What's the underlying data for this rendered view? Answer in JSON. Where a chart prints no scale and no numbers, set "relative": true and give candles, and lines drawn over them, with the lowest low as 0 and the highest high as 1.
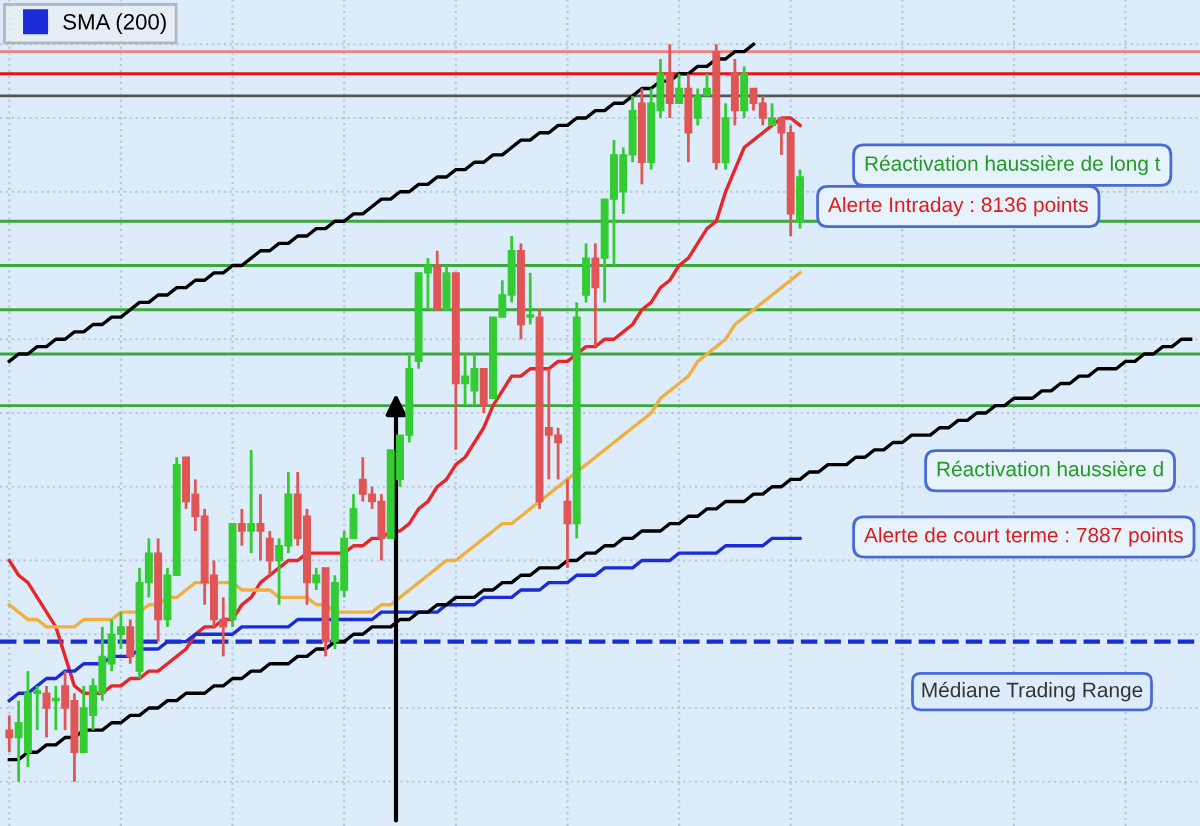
{
  "chart_data": {
    "type": "candlestick",
    "relative": true,
    "grid": true,
    "legend": "top left",
    "categories": [
      null,
      null,
      null,
      null,
      null,
      null,
      null,
      null,
      null,
      null,
      null,
      null,
      null,
      null,
      null,
      null,
      null,
      null,
      null,
      null,
      null,
      null,
      null,
      null,
      null,
      null,
      null,
      null,
      null,
      null,
      null,
      null,
      null,
      null,
      null,
      null,
      null,
      null,
      null,
      null,
      null,
      null,
      null,
      null,
      null,
      null,
      null,
      null,
      null,
      null,
      null,
      null,
      null,
      null,
      null,
      null,
      null,
      null,
      null,
      null,
      null,
      null,
      null,
      null,
      null,
      null,
      null,
      null,
      null,
      null,
      null,
      null,
      null,
      null,
      null,
      null,
      null,
      null,
      null,
      null,
      null,
      null,
      null,
      null,
      null,
      null,
      null,
      null,
      null,
      null,
      null,
      null,
      null,
      null,
      null,
      null,
      null,
      null,
      null,
      null,
      null,
      null,
      null,
      null,
      null,
      null,
      null,
      null,
      null,
      null,
      null,
      null,
      null,
      null,
      null,
      null,
      null,
      null,
      null,
      null,
      null,
      null,
      null,
      null,
      null,
      null,
      null,
      null
    ],
    "ohlc": [
      [
        0.07,
        0.09,
        0.04,
        0.06
      ],
      [
        0.06,
        0.11,
        0.0,
        0.08
      ],
      [
        0.04,
        0.15,
        0.02,
        0.12
      ],
      [
        0.12,
        0.13,
        0.07,
        0.12
      ],
      [
        0.12,
        0.13,
        0.06,
        0.1
      ],
      [
        0.11,
        0.13,
        0.07,
        0.11
      ],
      [
        0.13,
        0.15,
        0.07,
        0.1
      ],
      [
        0.11,
        0.12,
        0.0,
        0.04
      ],
      [
        0.04,
        0.13,
        0.04,
        0.1
      ],
      [
        0.09,
        0.14,
        0.07,
        0.13
      ],
      [
        0.12,
        0.21,
        0.11,
        0.17
      ],
      [
        0.16,
        0.22,
        0.15,
        0.2
      ],
      [
        0.2,
        0.23,
        0.18,
        0.21
      ],
      [
        0.21,
        0.22,
        0.16,
        0.17
      ],
      [
        0.15,
        0.29,
        0.14,
        0.27
      ],
      [
        0.27,
        0.33,
        0.25,
        0.31
      ],
      [
        0.31,
        0.33,
        0.19,
        0.22
      ],
      [
        0.22,
        0.29,
        0.21,
        0.28
      ],
      [
        0.28,
        0.44,
        0.28,
        0.43
      ],
      [
        0.44,
        0.44,
        0.37,
        0.38
      ],
      [
        0.39,
        0.41,
        0.34,
        0.36
      ],
      [
        0.36,
        0.37,
        0.24,
        0.27
      ],
      [
        0.28,
        0.3,
        0.21,
        0.22
      ],
      [
        0.22,
        0.25,
        0.17,
        0.21
      ],
      [
        0.22,
        0.35,
        0.21,
        0.35
      ],
      [
        0.35,
        0.37,
        0.32,
        0.34
      ],
      [
        0.34,
        0.45,
        0.31,
        0.35
      ],
      [
        0.35,
        0.39,
        0.3,
        0.34
      ],
      [
        0.33,
        0.34,
        0.28,
        0.3
      ],
      [
        0.3,
        0.33,
        0.24,
        0.32
      ],
      [
        0.32,
        0.42,
        0.31,
        0.39
      ],
      [
        0.39,
        0.42,
        0.32,
        0.33
      ],
      [
        0.36,
        0.37,
        0.24,
        0.27
      ],
      [
        0.27,
        0.29,
        0.26,
        0.28
      ],
      [
        0.29,
        0.29,
        0.17,
        0.19
      ],
      [
        0.19,
        0.28,
        0.18,
        0.27
      ],
      [
        0.26,
        0.34,
        0.25,
        0.33
      ],
      [
        0.33,
        0.39,
        0.33,
        0.37
      ],
      [
        0.41,
        0.44,
        0.38,
        0.39
      ],
      [
        0.39,
        0.4,
        0.37,
        0.38
      ],
      [
        0.38,
        0.39,
        0.3,
        0.33
      ],
      [
        0.33,
        0.45,
        0.33,
        0.45
      ],
      [
        0.41,
        0.47,
        0.4,
        0.47
      ],
      [
        0.47,
        0.58,
        0.46,
        0.56
      ],
      [
        0.57,
        0.69,
        0.56,
        0.69
      ],
      [
        0.69,
        0.71,
        0.64,
        0.7
      ],
      [
        0.7,
        0.72,
        0.64,
        0.64
      ],
      [
        0.64,
        0.7,
        0.64,
        0.69
      ],
      [
        0.69,
        0.69,
        0.45,
        0.54
      ],
      [
        0.54,
        0.58,
        0.51,
        0.55
      ],
      [
        0.53,
        0.58,
        0.51,
        0.56
      ],
      [
        0.56,
        0.56,
        0.5,
        0.51
      ],
      [
        0.52,
        0.63,
        0.52,
        0.63
      ],
      [
        0.63,
        0.68,
        0.63,
        0.66
      ],
      [
        0.66,
        0.74,
        0.65,
        0.72
      ],
      [
        0.72,
        0.73,
        0.6,
        0.62
      ],
      [
        0.63,
        0.69,
        0.62,
        0.63
      ],
      [
        0.63,
        0.64,
        0.37,
        0.38
      ],
      [
        0.48,
        0.56,
        0.41,
        0.47
      ],
      [
        0.47,
        0.48,
        0.41,
        0.46
      ],
      [
        0.38,
        0.41,
        0.29,
        0.35
      ],
      [
        0.35,
        0.65,
        0.33,
        0.63
      ],
      [
        0.66,
        0.73,
        0.65,
        0.71
      ],
      [
        0.71,
        0.73,
        0.59,
        0.67
      ],
      [
        0.71,
        0.79,
        0.65,
        0.79
      ],
      [
        0.79,
        0.87,
        0.7,
        0.85
      ],
      [
        0.8,
        0.86,
        0.77,
        0.85
      ],
      [
        0.85,
        0.93,
        0.84,
        0.91
      ],
      [
        0.92,
        0.94,
        0.81,
        0.84
      ],
      [
        0.84,
        0.94,
        0.83,
        0.92
      ],
      [
        0.91,
        0.98,
        0.9,
        0.96
      ],
      [
        0.96,
        1.0,
        0.9,
        0.92
      ],
      [
        0.92,
        0.96,
        0.92,
        0.94
      ],
      [
        0.94,
        0.96,
        0.84,
        0.88
      ],
      [
        0.9,
        0.94,
        0.89,
        0.93
      ],
      [
        0.93,
        0.96,
        0.93,
        0.94
      ],
      [
        0.99,
        1.0,
        0.83,
        0.84
      ],
      [
        0.84,
        0.92,
        0.83,
        0.9
      ],
      [
        0.96,
        0.98,
        0.89,
        0.91
      ],
      [
        0.91,
        0.97,
        0.9,
        0.96
      ],
      [
        0.94,
        0.94,
        0.91,
        0.92
      ],
      [
        0.92,
        0.93,
        0.89,
        0.9
      ],
      [
        0.89,
        0.92,
        0.89,
        0.9
      ],
      [
        0.9,
        0.9,
        0.85,
        0.88
      ],
      [
        0.88,
        0.89,
        0.74,
        0.77
      ],
      [
        0.76,
        0.83,
        0.75,
        0.82
      ],
      null,
      null,
      null,
      null,
      null,
      null,
      null,
      null,
      null,
      null,
      null,
      null,
      null,
      null,
      null,
      null,
      null,
      null,
      null,
      null,
      null,
      null,
      null,
      null,
      null,
      null,
      null,
      null,
      null,
      null,
      null,
      null,
      null,
      null,
      null,
      null,
      null,
      null,
      null,
      null,
      null,
      null
    ],
    "series": [
      {
        "type": "line",
        "color": "#e8262a",
        "values": [
          0.3,
          0.28,
          0.27,
          0.25,
          0.23,
          0.21,
          0.17,
          0.13,
          0.12,
          0.12,
          0.12,
          0.13,
          0.13,
          0.14,
          0.14,
          0.15,
          0.15,
          0.16,
          0.17,
          0.18,
          0.2,
          0.21,
          0.21,
          0.22,
          0.22,
          0.24,
          0.25,
          0.27,
          0.28,
          0.29,
          0.3,
          0.3,
          0.31,
          0.31,
          0.31,
          0.31,
          0.31,
          0.32,
          0.32,
          0.33,
          0.33,
          0.34,
          0.34,
          0.35,
          0.37,
          0.38,
          0.4,
          0.41,
          0.43,
          0.44,
          0.46,
          0.48,
          0.51,
          0.53,
          0.55,
          0.55,
          0.56,
          0.56,
          0.56,
          0.57,
          0.57,
          0.58,
          0.59,
          0.59,
          0.6,
          0.6,
          0.61,
          0.62,
          0.64,
          0.65,
          0.67,
          0.68,
          0.7,
          0.71,
          0.73,
          0.75,
          0.76,
          0.8,
          0.83,
          0.86,
          0.87,
          0.88,
          0.89,
          0.9,
          0.9,
          0.89,
          null,
          null,
          null,
          null,
          null,
          null,
          null,
          null,
          null,
          null,
          null,
          null,
          null,
          null,
          null,
          null,
          null,
          null,
          null,
          null,
          null,
          null,
          null,
          null,
          null,
          null,
          null,
          null,
          null,
          null,
          null,
          null,
          null,
          null,
          null,
          null,
          null,
          null,
          null,
          null,
          null,
          null
        ]
      },
      {
        "type": "line",
        "color": "#f0b040",
        "values": [
          0.24,
          0.23,
          0.22,
          0.22,
          0.21,
          0.21,
          0.21,
          0.21,
          0.22,
          0.22,
          0.22,
          0.22,
          0.23,
          0.23,
          0.23,
          0.24,
          0.24,
          0.25,
          0.25,
          0.26,
          0.27,
          0.27,
          0.27,
          0.27,
          0.27,
          0.26,
          0.26,
          0.26,
          0.26,
          0.25,
          0.25,
          0.25,
          0.25,
          0.24,
          0.24,
          0.23,
          0.23,
          0.23,
          0.23,
          0.23,
          0.24,
          0.24,
          0.25,
          0.26,
          0.27,
          0.28,
          0.29,
          0.3,
          0.3,
          0.31,
          0.32,
          0.33,
          0.34,
          0.35,
          0.35,
          0.36,
          0.37,
          0.38,
          0.39,
          0.4,
          0.41,
          0.42,
          0.43,
          0.44,
          0.45,
          0.46,
          0.47,
          0.48,
          0.49,
          0.5,
          0.52,
          0.53,
          0.54,
          0.55,
          0.57,
          0.58,
          0.59,
          0.6,
          0.62,
          0.63,
          0.64,
          0.65,
          0.66,
          0.67,
          0.68,
          0.69,
          null,
          null,
          null,
          null,
          null,
          null,
          null,
          null,
          null,
          null,
          null,
          null,
          null,
          null,
          null,
          null,
          null,
          null,
          null,
          null,
          null,
          null,
          null,
          null,
          null,
          null,
          null,
          null,
          null,
          null,
          null,
          null,
          null,
          null,
          null,
          null,
          null,
          null,
          null,
          null,
          null,
          null
        ]
      },
      {
        "type": "line",
        "name": "SMA (200)",
        "color": "#1a2bd8",
        "values": [
          0.11,
          0.12,
          0.12,
          0.13,
          0.14,
          0.14,
          0.15,
          0.15,
          0.16,
          0.16,
          0.16,
          0.17,
          0.17,
          0.17,
          0.18,
          0.18,
          0.18,
          0.19,
          0.19,
          0.19,
          0.2,
          0.2,
          0.2,
          0.2,
          0.2,
          0.21,
          0.21,
          0.21,
          0.21,
          0.21,
          0.21,
          0.22,
          0.22,
          0.22,
          0.22,
          0.22,
          0.22,
          0.22,
          0.22,
          0.22,
          0.23,
          0.23,
          0.23,
          0.23,
          0.23,
          0.23,
          0.23,
          0.24,
          0.24,
          0.24,
          0.24,
          0.25,
          0.25,
          0.25,
          0.25,
          0.26,
          0.26,
          0.26,
          0.27,
          0.27,
          0.27,
          0.28,
          0.28,
          0.28,
          0.29,
          0.29,
          0.29,
          0.29,
          0.3,
          0.3,
          0.3,
          0.3,
          0.31,
          0.31,
          0.31,
          0.31,
          0.31,
          0.32,
          0.32,
          0.32,
          0.32,
          0.32,
          0.33,
          0.33,
          0.33,
          0.33,
          null,
          null,
          null,
          null,
          null,
          null,
          null,
          null,
          null,
          null,
          null,
          null,
          null,
          null,
          null,
          null,
          null,
          null,
          null,
          null,
          null,
          null,
          null,
          null,
          null,
          null,
          null,
          null,
          null,
          null,
          null,
          null,
          null,
          null,
          null,
          null,
          null,
          null,
          null,
          null,
          null,
          null
        ]
      },
      {
        "type": "line",
        "color": "#000000",
        "values": [
          0.57,
          0.58,
          0.58,
          0.59,
          0.59,
          0.6,
          0.6,
          0.61,
          0.61,
          0.62,
          0.62,
          0.63,
          0.63,
          0.64,
          0.65,
          0.65,
          0.66,
          0.66,
          0.67,
          0.67,
          0.68,
          0.68,
          0.69,
          0.69,
          0.7,
          0.7,
          0.71,
          0.72,
          0.72,
          0.73,
          0.73,
          0.74,
          0.74,
          0.75,
          0.75,
          0.76,
          0.76,
          0.77,
          0.77,
          0.78,
          0.79,
          0.79,
          0.8,
          0.8,
          0.81,
          0.81,
          0.82,
          0.82,
          0.83,
          0.83,
          0.84,
          0.84,
          0.85,
          0.85,
          0.86,
          0.87,
          0.87,
          0.88,
          0.88,
          0.89,
          0.89,
          0.9,
          0.9,
          0.91,
          0.91,
          0.92,
          0.92,
          0.93,
          0.94,
          0.94,
          0.95,
          0.95,
          0.96,
          0.96,
          0.97,
          0.97,
          0.98,
          0.98,
          0.99,
          0.99,
          1.0,
          null,
          null,
          null,
          null,
          null,
          null,
          null,
          null,
          null,
          null,
          null,
          null,
          null,
          null,
          null,
          null,
          null,
          null,
          null,
          null,
          null,
          null,
          null,
          null,
          null,
          null,
          null,
          null,
          null,
          null,
          null,
          null,
          null,
          null,
          null,
          null,
          null,
          null,
          null,
          null,
          null,
          null,
          null,
          null,
          null,
          null,
          null
        ]
      },
      {
        "type": "line",
        "color": "#000000",
        "values": [
          0.03,
          0.03,
          0.04,
          0.04,
          0.05,
          0.05,
          0.06,
          0.06,
          0.07,
          0.07,
          0.07,
          0.08,
          0.08,
          0.09,
          0.09,
          0.1,
          0.1,
          0.11,
          0.11,
          0.12,
          0.12,
          0.12,
          0.13,
          0.13,
          0.14,
          0.14,
          0.15,
          0.15,
          0.16,
          0.16,
          0.16,
          0.17,
          0.17,
          0.18,
          0.18,
          0.19,
          0.19,
          0.2,
          0.2,
          0.21,
          0.21,
          0.21,
          0.22,
          0.22,
          0.23,
          0.23,
          0.24,
          0.24,
          0.25,
          0.25,
          0.25,
          0.26,
          0.26,
          0.27,
          0.27,
          0.28,
          0.28,
          0.29,
          0.29,
          0.29,
          0.3,
          0.3,
          0.31,
          0.31,
          0.32,
          0.32,
          0.33,
          0.33,
          0.34,
          0.34,
          0.34,
          0.35,
          0.35,
          0.36,
          0.36,
          0.37,
          0.37,
          0.38,
          0.38,
          0.38,
          0.39,
          0.39,
          0.4,
          0.4,
          0.41,
          0.41,
          0.42,
          0.42,
          0.43,
          0.43,
          0.43,
          0.44,
          0.44,
          0.45,
          0.45,
          0.46,
          0.46,
          0.47,
          0.47,
          0.47,
          0.48,
          0.48,
          0.49,
          0.49,
          0.5,
          0.5,
          0.51,
          0.51,
          0.52,
          0.52,
          0.52,
          0.53,
          0.53,
          0.54,
          0.54,
          0.55,
          0.55,
          0.56,
          0.56,
          0.56,
          0.57,
          0.57,
          0.58,
          0.58,
          0.59,
          0.59,
          0.6,
          0.6
        ]
      }
    ],
    "ref_lines": [
      {
        "axis": "y",
        "value": 0.99,
        "color": "#f08080",
        "line_style": "solid"
      },
      {
        "axis": "y",
        "value": 0.96,
        "color": "#ee1111",
        "line_style": "solid"
      },
      {
        "axis": "y",
        "value": 0.93,
        "color": "#555555",
        "line_style": "solid"
      },
      {
        "axis": "y",
        "value": 0.76,
        "color": "#3aa83a",
        "line_style": "solid"
      },
      {
        "axis": "y",
        "value": 0.7,
        "color": "#3aa83a",
        "line_style": "solid"
      },
      {
        "axis": "y",
        "value": 0.64,
        "color": "#3aa83a",
        "line_style": "solid"
      },
      {
        "axis": "y",
        "value": 0.58,
        "color": "#3aa83a",
        "line_style": "solid"
      },
      {
        "axis": "y",
        "value": 0.51,
        "color": "#3aa83a",
        "line_style": "solid"
      },
      {
        "axis": "y",
        "value": 0.19,
        "color": "#1a2bd8",
        "line_style": "dashed",
        "label": "Médiane Trading Range"
      }
    ],
    "annotations": [
      "Réactivation haussière de long t",
      "Alerte Intraday : 8136 points",
      "Réactivation haussière d",
      "Alerte de court terme : 7887 points"
    ]
  }
}
